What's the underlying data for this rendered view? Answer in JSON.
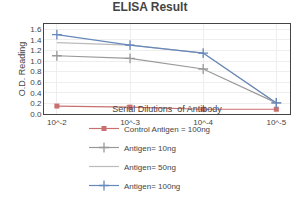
{
  "chart_data": {
    "type": "line",
    "title": "ELISA Result",
    "x_label": "Serial Dilutions  of Antibody",
    "y_label": "O.D. Reading",
    "x": [
      0.01,
      0.001,
      0.0001,
      1e-05
    ],
    "series": [
      {
        "name": "Control Antigen = 100ng",
        "color": "#c87070",
        "marker": "square",
        "line_style": "solid",
        "values": [
          0.15,
          0.13,
          0.09,
          0.09
        ]
      },
      {
        "name": "Antigen= 10ng",
        "color": "#999999",
        "marker": "plus",
        "line_style": "solid",
        "values": [
          1.1,
          1.05,
          0.85,
          0.21
        ]
      },
      {
        "name": "Antigen= 50ng",
        "color": "#bbbbbb",
        "marker": "none",
        "line_style": "solid",
        "values": [
          1.35,
          1.3,
          1.15,
          0.21
        ]
      },
      {
        "name": "Antigen= 100ng",
        "color": "#6688bb",
        "marker": "plus",
        "line_style": "solid",
        "values": [
          1.5,
          1.3,
          1.15,
          0.21
        ]
      }
    ],
    "log": "x",
    "xlim": [
      0.015,
      6.5e-06
    ],
    "xticks": [
      {
        "value": 0.01,
        "label": "10^-2"
      },
      {
        "value": 0.001,
        "label": "10^-3"
      },
      {
        "value": 0.0001,
        "label": "10^-4"
      },
      {
        "value": 1e-05,
        "label": "10^-5"
      }
    ],
    "ylim": [
      0,
      1.7
    ],
    "yticks": [
      {
        "value": 0,
        "label": "0.0"
      },
      0.2,
      0.4,
      0.6,
      0.8,
      {
        "value": 1,
        "label": "1.0"
      },
      1.2,
      1.4,
      1.6
    ],
    "grid": true,
    "legend": "bottom"
  }
}
